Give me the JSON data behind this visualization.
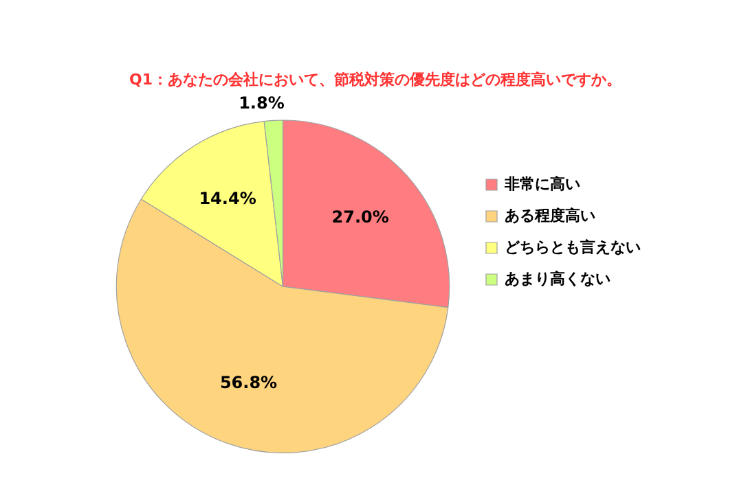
{
  "chart_data": {
    "type": "pie",
    "title": "Q1：あなたの会社において、節税対策の優先度はどの程度高いですか。",
    "categories": [
      "非常に高い",
      "ある程度高い",
      "どちらとも言えない",
      "あまり高くない"
    ],
    "values": [
      27.0,
      56.8,
      14.4,
      1.8
    ],
    "value_labels": [
      "27.0%",
      "56.8%",
      "14.4%",
      "1.8%"
    ],
    "colors": [
      "#ff7c80",
      "#ffd47f",
      "#ffff80",
      "#ccff80"
    ],
    "legend": "right"
  }
}
